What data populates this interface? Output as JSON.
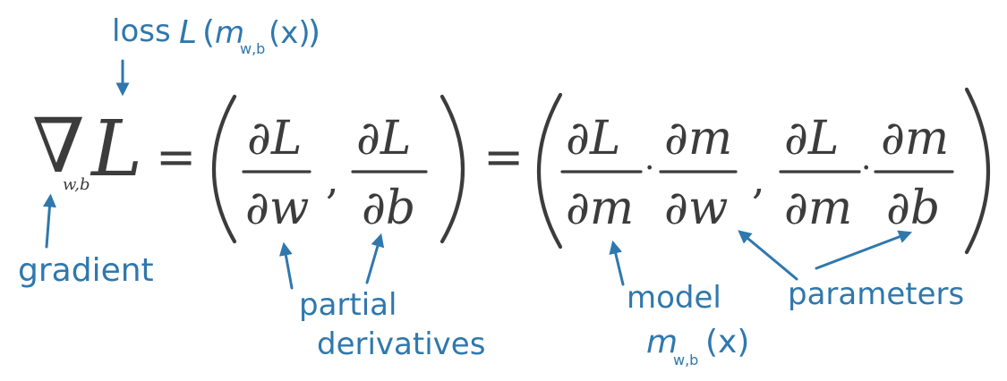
{
  "equation": {
    "nabla": "∇",
    "nabla_sub": "w,b",
    "loss_symbol": "L",
    "equals": "=",
    "comma": ",",
    "dot": "·",
    "partial_L": "∂L",
    "partial_w": "∂w",
    "partial_b": "∂b",
    "partial_m": "∂m"
  },
  "annotations": {
    "loss_word": "loss",
    "loss_expr_L": "L",
    "loss_expr_m": "m",
    "loss_expr_sub": "w,b",
    "loss_expr_x": "(x)",
    "gradient": "gradient",
    "partial": "partial",
    "derivatives": "derivatives",
    "model": "model",
    "model_m": "m",
    "model_sub": "w,b",
    "model_x": "(x)",
    "parameters": "parameters"
  },
  "colors": {
    "ink": "#3c3c3c",
    "annotation_blue": "#2f78ad",
    "background": "#ffffff"
  }
}
